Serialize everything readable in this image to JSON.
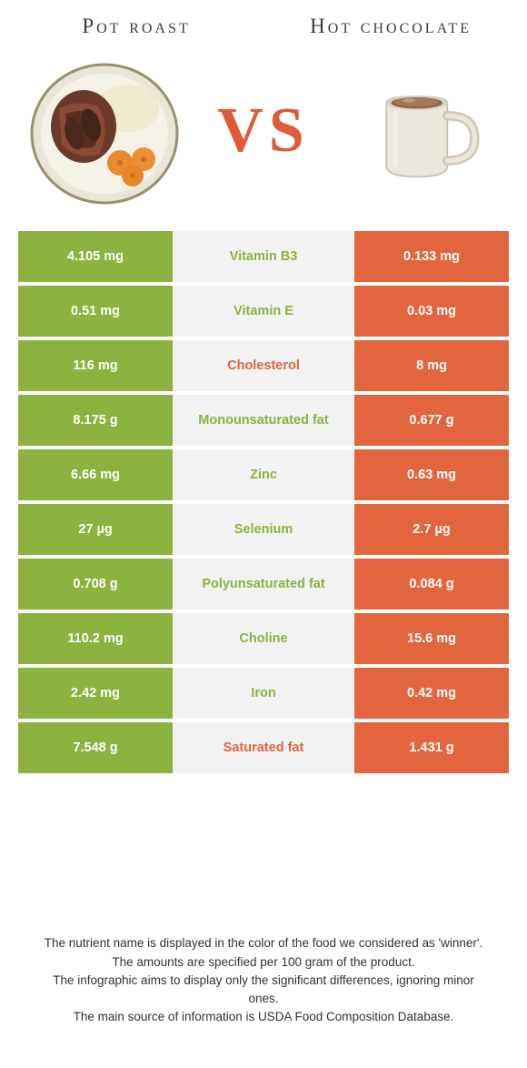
{
  "colors": {
    "food_a": "#8cb23f",
    "food_b": "#e2653e",
    "food_a_text": "#ffffff",
    "food_b_text": "#ffffff",
    "mid_bg": "#f2f2f2",
    "mid_winner_a": "#8cb23f",
    "mid_winner_b": "#e2653e"
  },
  "header": {
    "food_a_title": "Pot roast",
    "food_b_title": "Hot chocolate",
    "vs_label": "VS"
  },
  "rows": [
    {
      "nutrient": "Vitamin B3",
      "a": "4.105 mg",
      "b": "0.133 mg",
      "winner": "a"
    },
    {
      "nutrient": "Vitamin E",
      "a": "0.51 mg",
      "b": "0.03 mg",
      "winner": "a"
    },
    {
      "nutrient": "Cholesterol",
      "a": "116 mg",
      "b": "8 mg",
      "winner": "b"
    },
    {
      "nutrient": "Monounsaturated fat",
      "a": "8.175 g",
      "b": "0.677 g",
      "winner": "a"
    },
    {
      "nutrient": "Zinc",
      "a": "6.66 mg",
      "b": "0.63 mg",
      "winner": "a"
    },
    {
      "nutrient": "Selenium",
      "a": "27 µg",
      "b": "2.7 µg",
      "winner": "a"
    },
    {
      "nutrient": "Polyunsaturated fat",
      "a": "0.708 g",
      "b": "0.084 g",
      "winner": "a"
    },
    {
      "nutrient": "Choline",
      "a": "110.2 mg",
      "b": "15.6 mg",
      "winner": "a"
    },
    {
      "nutrient": "Iron",
      "a": "2.42 mg",
      "b": "0.42 mg",
      "winner": "a"
    },
    {
      "nutrient": "Saturated fat",
      "a": "7.548 g",
      "b": "1.431 g",
      "winner": "b"
    }
  ],
  "footer": {
    "line1": "The nutrient name is displayed in the color of the food we considered as 'winner'.",
    "line2": "The amounts are specified per 100 gram of the product.",
    "line3": "The infographic aims to display only the significant differences, ignoring minor ones.",
    "line4": "The main source of information is USDA Food Composition Database."
  }
}
